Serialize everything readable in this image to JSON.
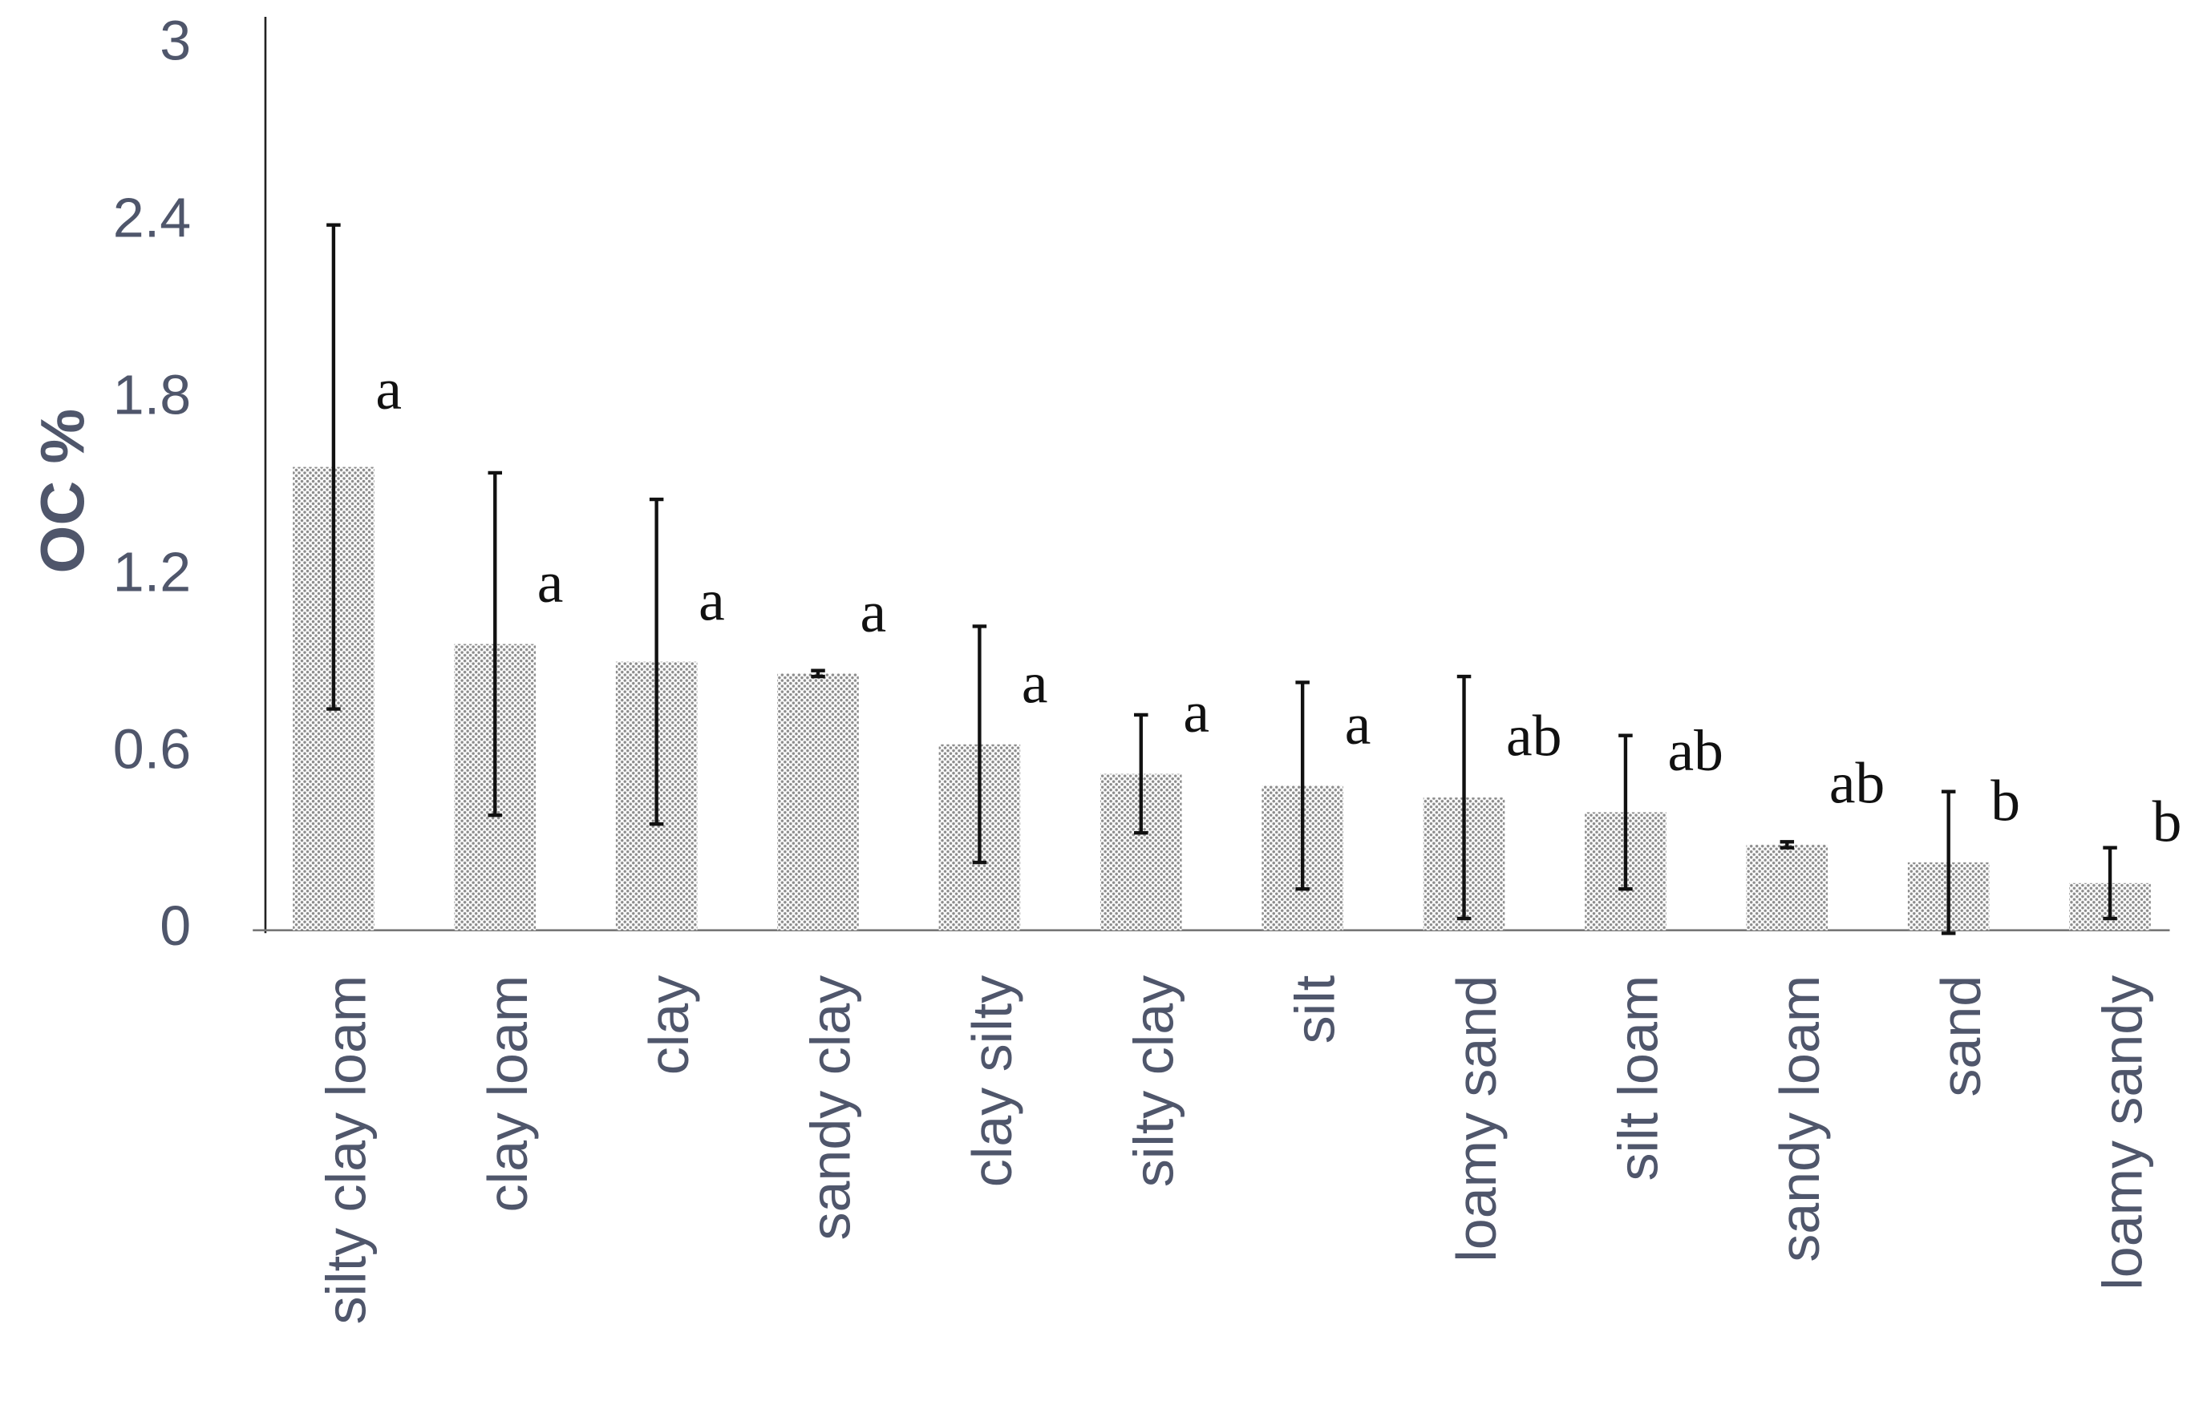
{
  "chart_data": {
    "type": "bar",
    "y_label": "OC %",
    "categories": [
      "silty clay loam",
      "clay loam",
      "clay",
      "sandy clay",
      "clay silty",
      "silty clay",
      "silt",
      "loamy sand",
      "silt loam",
      "sandy loam",
      "sand",
      "loamy sandy"
    ],
    "values": [
      1.57,
      0.97,
      0.91,
      0.87,
      0.63,
      0.53,
      0.49,
      0.45,
      0.4,
      0.29,
      0.23,
      0.16
    ],
    "errors": [
      0.82,
      0.58,
      0.55,
      0.01,
      0.4,
      0.2,
      0.35,
      0.41,
      0.26,
      0.01,
      0.24,
      0.12
    ],
    "annotations": [
      "a",
      "a",
      "a",
      "a",
      "a",
      "a",
      "a",
      "ab",
      "ab",
      "ab",
      "b",
      "b"
    ],
    "color": "#8c8c8c",
    "ylim": [
      0,
      3
    ],
    "yticks": [
      0,
      0.6,
      1.2,
      1.8,
      2.4,
      3
    ],
    "grid": false
  }
}
